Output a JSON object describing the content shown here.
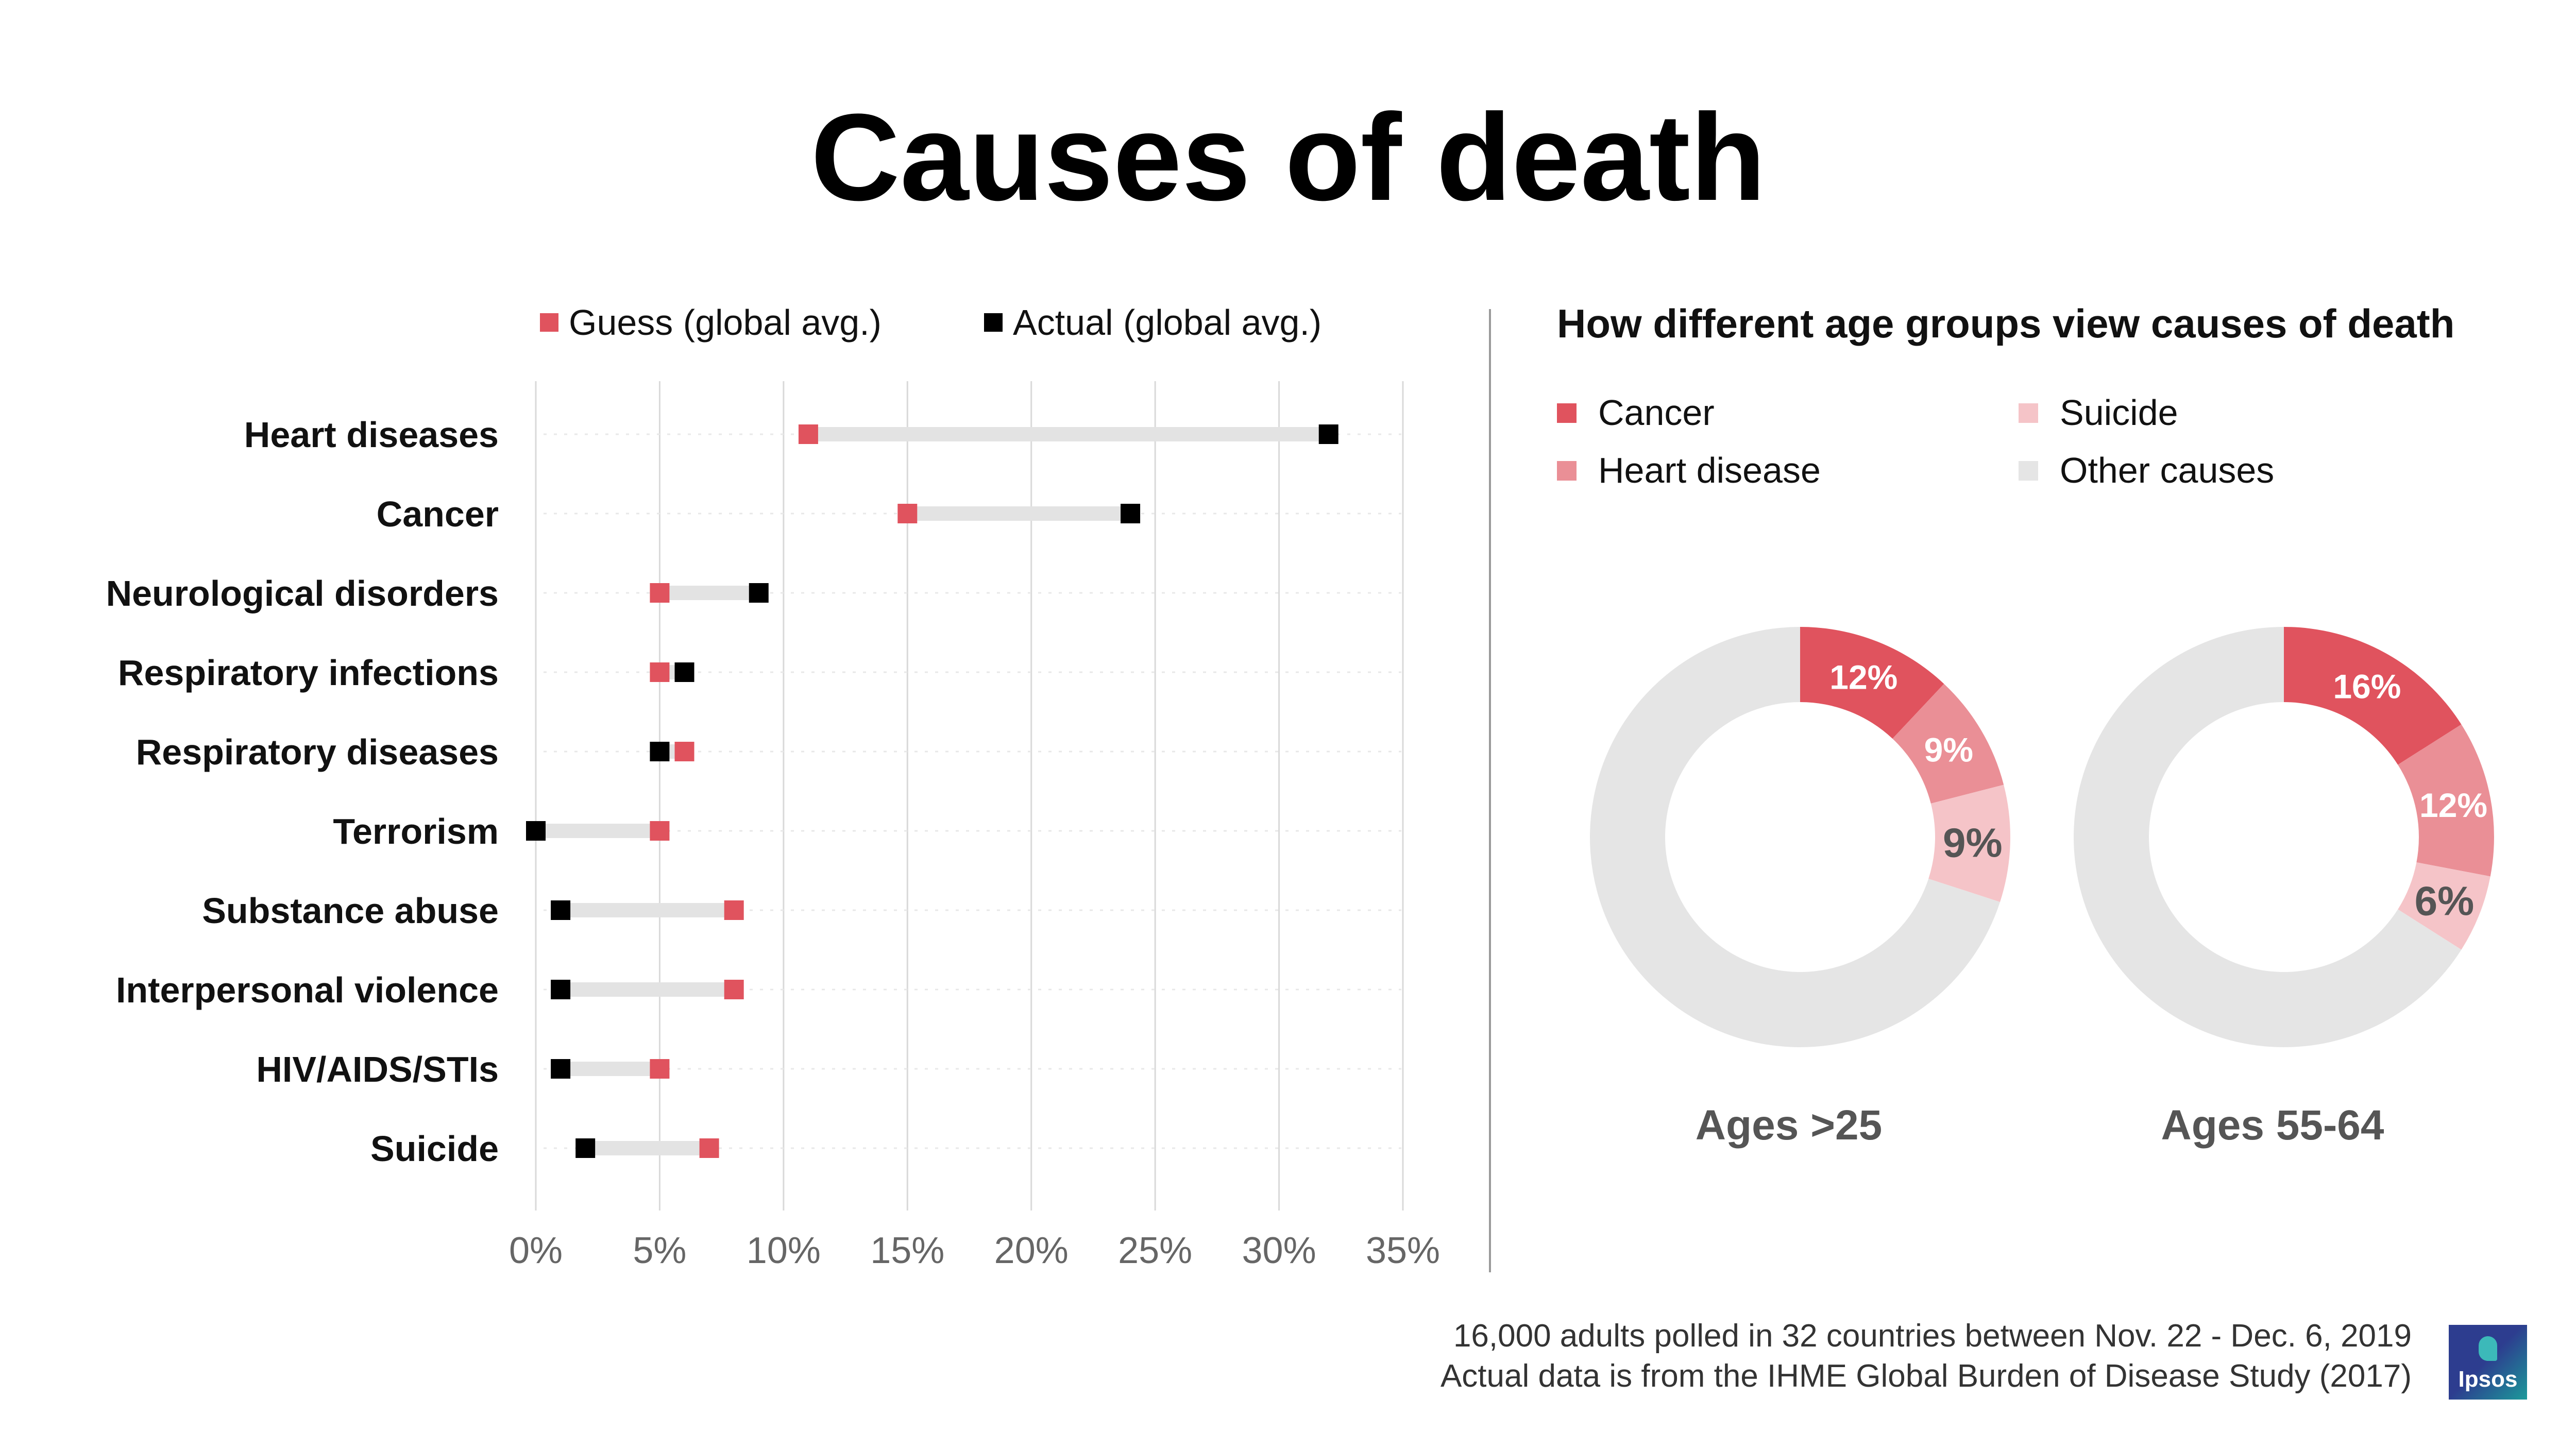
{
  "title": "Causes of death",
  "colors": {
    "guess": "#e0535e",
    "actual": "#000000",
    "bar": "#e3e3e3",
    "grid": "#d9d9d9",
    "cancer": "#e0535e",
    "heart_disease": "#ea8f96",
    "suicide": "#f5c4c8",
    "other": "#e5e5e5",
    "label_light": "#ffffff",
    "label_dark": "#555555"
  },
  "chart_data": [
    {
      "type": "dumbbell",
      "legend": [
        {
          "key": "guess",
          "label": "Guess (global avg.)"
        },
        {
          "key": "actual",
          "label": "Actual (global avg.)"
        }
      ],
      "categories": [
        "Heart diseases",
        "Cancer",
        "Neurological disorders",
        "Respiratory infections",
        "Respiratory diseases",
        "Terrorism",
        "Substance abuse",
        "Interpersonal violence",
        "HIV/AIDS/STIs",
        "Suicide"
      ],
      "series": [
        {
          "name": "Guess (global avg.)",
          "key": "guess",
          "values": [
            11,
            15,
            5,
            5,
            6,
            5,
            8,
            8,
            5,
            7
          ]
        },
        {
          "name": "Actual (global avg.)",
          "key": "actual",
          "values": [
            32,
            24,
            9,
            6,
            5,
            0,
            1,
            1,
            1,
            2
          ]
        }
      ],
      "xlim": [
        0,
        35
      ],
      "xticks": [
        0,
        5,
        10,
        15,
        20,
        25,
        30,
        35
      ],
      "xtick_labels": [
        "0%",
        "5%",
        "10%",
        "15%",
        "20%",
        "25%",
        "30%",
        "35%"
      ]
    },
    {
      "type": "donut",
      "title": "How different age groups view causes of death",
      "legend": [
        {
          "key": "cancer",
          "label": "Cancer"
        },
        {
          "key": "heart_disease",
          "label": "Heart disease"
        },
        {
          "key": "suicide",
          "label": "Suicide"
        },
        {
          "key": "other",
          "label": "Other causes"
        }
      ],
      "charts": [
        {
          "label": "Ages >25",
          "slices": [
            {
              "key": "cancer",
              "name": "Cancer",
              "value": 12,
              "label": "12%"
            },
            {
              "key": "heart_disease",
              "name": "Heart disease",
              "value": 9,
              "label": "9%"
            },
            {
              "key": "suicide",
              "name": "Suicide",
              "value": 9,
              "label": "9%"
            },
            {
              "key": "other",
              "name": "Other causes",
              "value": 70,
              "label": ""
            }
          ]
        },
        {
          "label": "Ages 55-64",
          "slices": [
            {
              "key": "cancer",
              "name": "Cancer",
              "value": 16,
              "label": "16%"
            },
            {
              "key": "heart_disease",
              "name": "Heart disease",
              "value": 12,
              "label": "12%"
            },
            {
              "key": "suicide",
              "name": "Suicide",
              "value": 6,
              "label": "6%"
            },
            {
              "key": "other",
              "name": "Other causes",
              "value": 66,
              "label": ""
            }
          ]
        }
      ]
    }
  ],
  "footer": {
    "line1": "16,000 adults polled in 32 countries between Nov. 22 - Dec. 6, 2019",
    "line2": "Actual data is from the IHME Global Burden of Disease Study (2017)"
  },
  "logo": {
    "text": "Ipsos"
  }
}
